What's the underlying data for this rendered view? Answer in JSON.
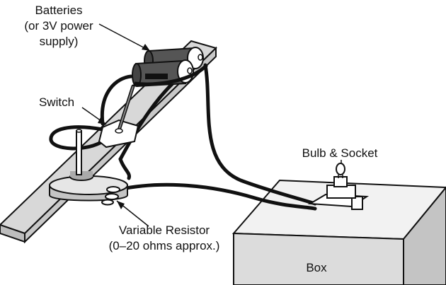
{
  "labels": {
    "batteries_line1": "Batteries",
    "batteries_line2": "(or 3V power",
    "batteries_line3": "supply)",
    "switch": "Switch",
    "bulb_socket": "Bulb & Socket",
    "resistor_line1": "Variable Resistor",
    "resistor_line2": "(0–20 ohms approx.)",
    "box": "Box"
  },
  "colors": {
    "line": "#111111",
    "board": "#d8d8d8",
    "battery": "#555555",
    "box_front": "#dcdcdc",
    "box_top": "#f2f2f2"
  }
}
